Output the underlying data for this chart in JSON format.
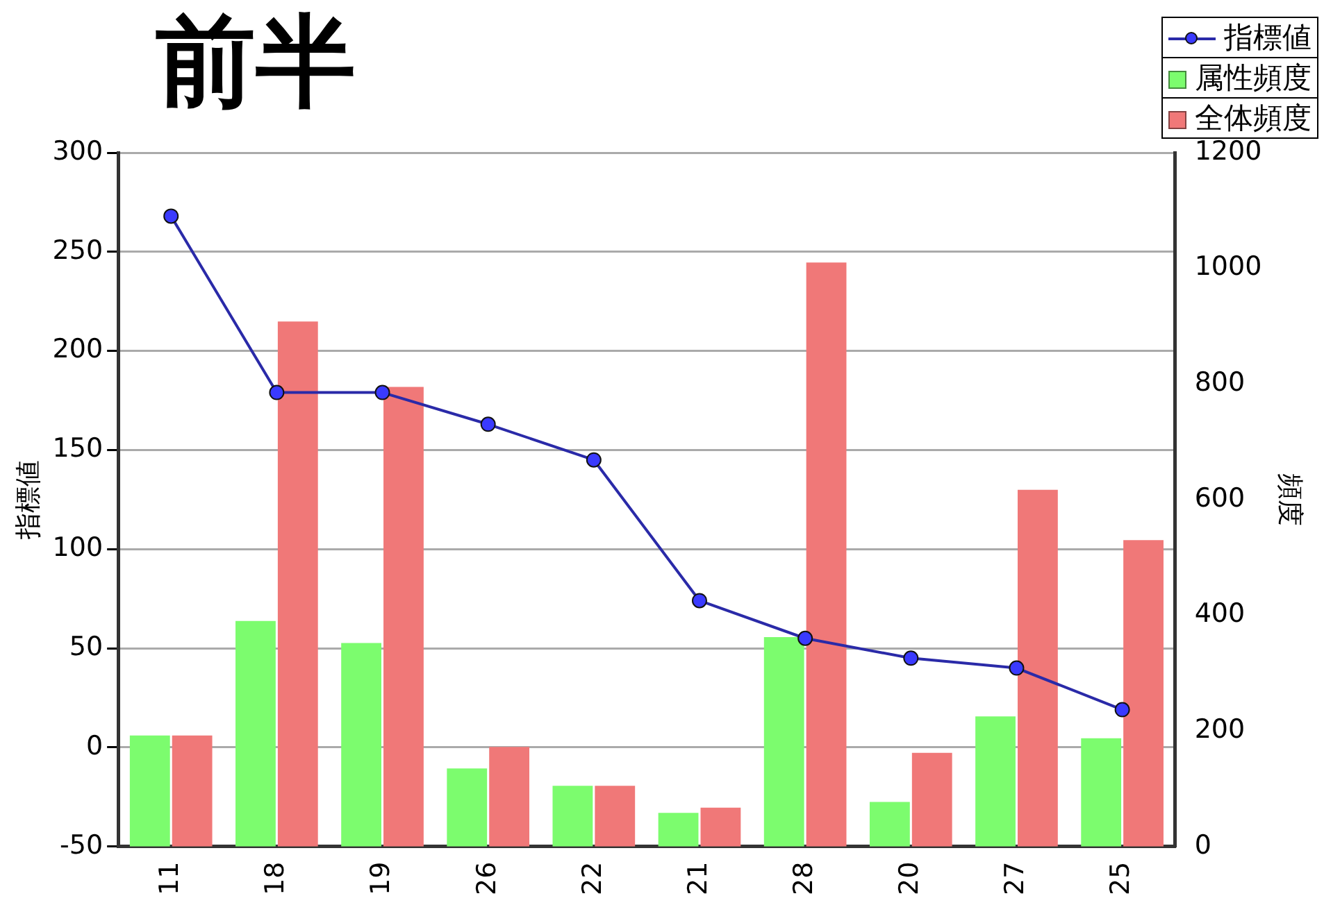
{
  "chart_data": {
    "type": "bar",
    "title": "前半",
    "ylabel": "指標値",
    "y2label": "頻度",
    "categories": [
      "11",
      "18",
      "19",
      "26",
      "22",
      "21",
      "28",
      "20",
      "27",
      "25"
    ],
    "series": [
      {
        "name": "指標値",
        "type": "line",
        "color": "#2a2aa8",
        "values": [
          268,
          179,
          179,
          163,
          145,
          74,
          55,
          45,
          40,
          19
        ]
      },
      {
        "name": "属性頻度",
        "axis": "y2",
        "color": "#7cfc6e",
        "values": [
          192,
          390,
          352,
          135,
          105,
          58,
          362,
          77,
          225,
          187
        ]
      },
      {
        "name": "全体頻度",
        "axis": "y2",
        "color": "#f07878",
        "values": [
          192,
          908,
          795,
          172,
          105,
          67,
          1010,
          162,
          617,
          530
        ]
      }
    ],
    "ylim": [
      -50,
      300
    ],
    "yticks": [
      -50,
      0,
      50,
      100,
      150,
      200,
      250,
      300
    ],
    "y2lim": [
      0,
      1200
    ],
    "y2ticks": [
      0,
      200,
      400,
      600,
      800,
      1000,
      1200
    ],
    "grid": "y",
    "legend": "top right",
    "marker": "circle",
    "line_style": "solid"
  }
}
